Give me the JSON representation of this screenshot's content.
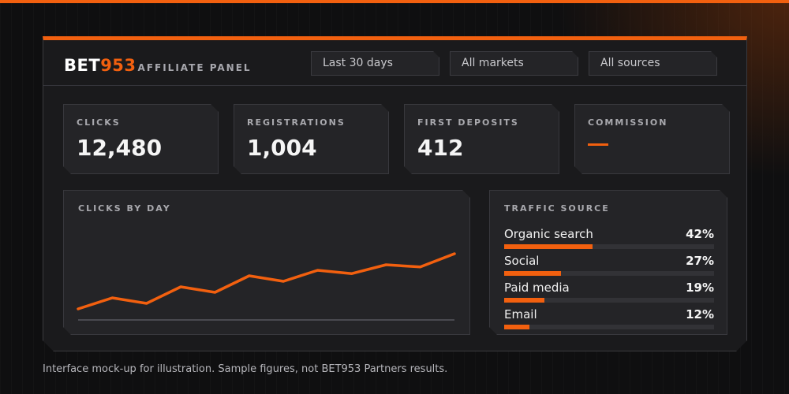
{
  "brand": {
    "logo_white": "BET",
    "logo_orange": "953",
    "subtitle": "AFFILIATE PANEL"
  },
  "filters": [
    {
      "label": "Last 30 days"
    },
    {
      "label": "All markets"
    },
    {
      "label": "All sources"
    }
  ],
  "kpis": [
    {
      "label": "CLICKS",
      "value": "12,480"
    },
    {
      "label": "REGISTRATIONS",
      "value": "1,004"
    },
    {
      "label": "FIRST DEPOSITS",
      "value": "412"
    },
    {
      "label": "COMMISSION",
      "value": "—"
    }
  ],
  "clicks_chart": {
    "title": "CLICKS BY DAY"
  },
  "chart_data": {
    "type": "line",
    "title": "CLICKS BY DAY",
    "xlabel": "",
    "ylabel": "",
    "grid": false,
    "x": [
      1,
      2,
      3,
      4,
      5,
      6,
      7,
      8,
      9,
      10,
      11,
      12
    ],
    "series": [
      {
        "values": [
          1,
          2,
          1.5,
          3,
          2.5,
          4,
          3.5,
          4.5,
          4.2,
          5,
          4.8,
          6
        ]
      }
    ],
    "ylim": [
      0,
      9
    ],
    "color": "#f2600f"
  },
  "traffic": {
    "title": "TRAFFIC SOURCE",
    "items": [
      {
        "label": "Organic search",
        "pct_text": "42%",
        "share": 0.42
      },
      {
        "label": "Social",
        "pct_text": "27%",
        "share": 0.27
      },
      {
        "label": "Paid media",
        "pct_text": "19%",
        "share": 0.19
      },
      {
        "label": "Email",
        "pct_text": "12%",
        "share": 0.12
      }
    ]
  },
  "footnote": "Interface mock-up for illustration. Sample figures, not BET953 Partners results.",
  "colors": {
    "accent": "#f2600f",
    "background": "#0f0f10",
    "panel": "#1a1a1c",
    "card": "#242427"
  }
}
